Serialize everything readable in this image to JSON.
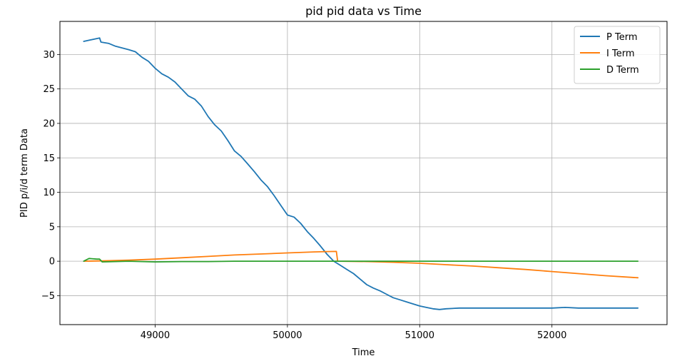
{
  "chart_data": {
    "type": "line",
    "title": "pid pid data vs Time",
    "xlabel": "Time",
    "ylabel": "PID p/i/d term Data",
    "xlim": [
      48280,
      52870
    ],
    "ylim": [
      -9.2,
      34.8
    ],
    "xticks": [
      49000,
      50000,
      51000,
      52000
    ],
    "yticks": [
      -5,
      0,
      5,
      10,
      15,
      20,
      25,
      30
    ],
    "grid": true,
    "legend_position": "top-right",
    "series": [
      {
        "name": "P Term",
        "color": "#1f77b4",
        "x": [
          48460,
          48580,
          48590,
          48650,
          48700,
          48800,
          48850,
          48900,
          48950,
          49000,
          49050,
          49100,
          49150,
          49200,
          49250,
          49300,
          49350,
          49400,
          49450,
          49500,
          49550,
          49600,
          49650,
          49700,
          49750,
          49800,
          49850,
          49900,
          49950,
          50000,
          50050,
          50100,
          50150,
          50200,
          50250,
          50300,
          50350,
          50400,
          50450,
          50500,
          50550,
          50600,
          50650,
          50700,
          50750,
          50800,
          50850,
          50900,
          50950,
          51000,
          51050,
          51100,
          51150,
          51200,
          51300,
          51500,
          51700,
          51900,
          52000,
          52100,
          52200,
          52300,
          52400,
          52500,
          52650
        ],
        "y": [
          31.9,
          32.4,
          31.8,
          31.6,
          31.2,
          30.7,
          30.4,
          29.6,
          29.0,
          28.0,
          27.2,
          26.7,
          26.0,
          25.0,
          24.0,
          23.5,
          22.5,
          21.0,
          19.8,
          18.9,
          17.5,
          16.0,
          15.2,
          14.1,
          13.0,
          11.8,
          10.8,
          9.5,
          8.1,
          6.7,
          6.4,
          5.5,
          4.3,
          3.3,
          2.2,
          1.0,
          0.0,
          -0.6,
          -1.2,
          -1.8,
          -2.6,
          -3.4,
          -3.9,
          -4.3,
          -4.8,
          -5.3,
          -5.6,
          -5.9,
          -6.2,
          -6.5,
          -6.7,
          -6.9,
          -7.0,
          -6.9,
          -6.8,
          -6.8,
          -6.8,
          -6.8,
          -6.8,
          -6.7,
          -6.8,
          -6.8,
          -6.8,
          -6.8,
          -6.8
        ]
      },
      {
        "name": "I Term",
        "color": "#ff7f0e",
        "x": [
          48460,
          48600,
          48800,
          49000,
          49200,
          49400,
          49600,
          49800,
          50000,
          50200,
          50300,
          50370,
          50380,
          50600,
          50800,
          51000,
          51200,
          51400,
          51600,
          51800,
          52000,
          52200,
          52400,
          52650
        ],
        "y": [
          0.0,
          0.05,
          0.15,
          0.3,
          0.5,
          0.7,
          0.9,
          1.05,
          1.2,
          1.35,
          1.4,
          1.42,
          0.0,
          -0.05,
          -0.15,
          -0.3,
          -0.5,
          -0.7,
          -0.95,
          -1.2,
          -1.5,
          -1.8,
          -2.1,
          -2.4
        ]
      },
      {
        "name": "D Term",
        "color": "#2ca02c",
        "x": [
          48460,
          48500,
          48560,
          48580,
          48600,
          48700,
          48800,
          49000,
          49200,
          49400,
          49600,
          49800,
          50000,
          50400,
          50800,
          51200,
          51600,
          52000,
          52400,
          52650
        ],
        "y": [
          0.0,
          0.4,
          0.3,
          0.3,
          -0.1,
          -0.05,
          0.0,
          -0.1,
          -0.05,
          -0.05,
          0.0,
          0.0,
          0.0,
          0.0,
          0.0,
          0.0,
          0.0,
          0.0,
          0.0,
          0.0
        ]
      }
    ]
  }
}
